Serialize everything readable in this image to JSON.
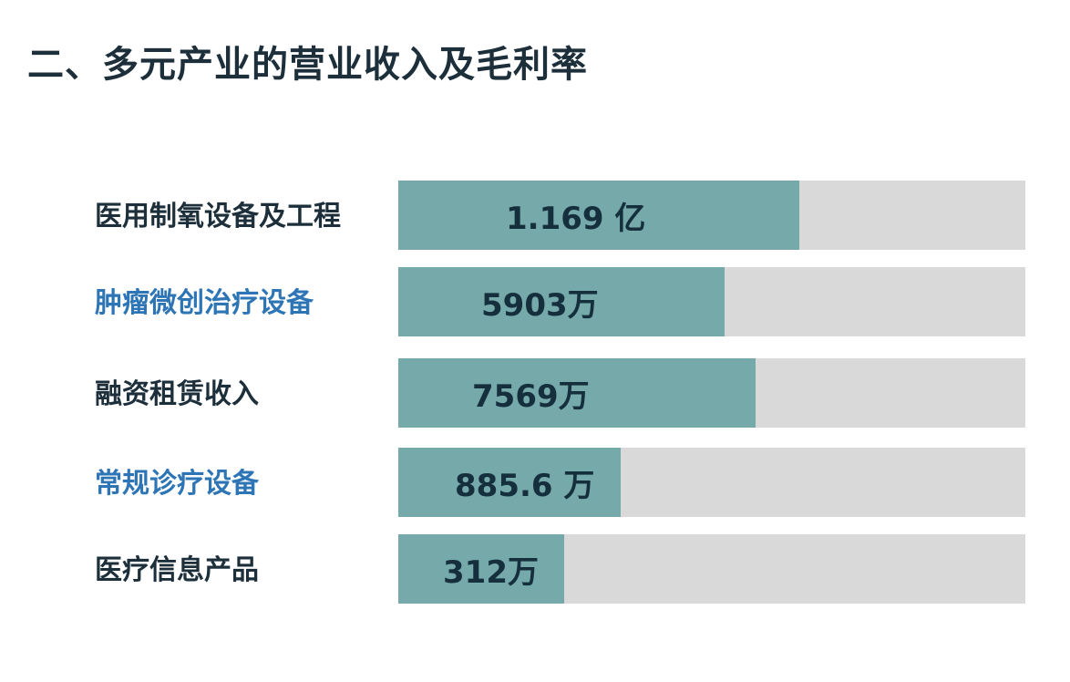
{
  "slide": {
    "title": "二、多元产业的营业收入及毛利率"
  },
  "colors": {
    "fill": "#75a9aa",
    "track": "#d9d9d9",
    "label_dark": "#1c2f3a",
    "label_blue": "#2e75b6",
    "value_text": "#15303c"
  },
  "chart_data": {
    "type": "bar",
    "orientation": "horizontal",
    "categories": [
      "医用制氧设备及工程",
      "肿瘤微创治疗设备",
      "融资租赁收入",
      "常规诊疗设备",
      "医疗信息产品"
    ],
    "series": [
      {
        "values": [
          11690,
          5903,
          7569,
          885.6,
          312
        ],
        "unit": "万"
      }
    ],
    "data_labels": [
      "1.169 亿",
      "5903万",
      "7569万",
      "885.6 万",
      "312万"
    ],
    "bar_fill_fraction": [
      0.64,
      0.52,
      0.57,
      0.355,
      0.265
    ],
    "label_colors": [
      "#1c2f3a",
      "#2e75b6",
      "#1c2f3a",
      "#2e75b6",
      "#1c2f3a"
    ],
    "grid": false,
    "legend": "none"
  }
}
